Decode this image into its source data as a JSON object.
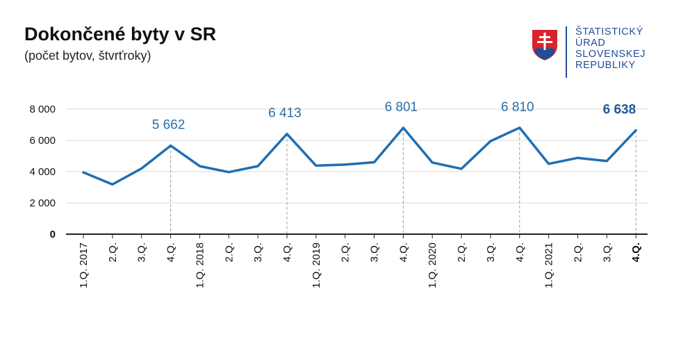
{
  "header": {
    "title": "Dokončené byty v SR",
    "subtitle": "(počet bytov, štvrťroky)"
  },
  "logo": {
    "lines": [
      "ŠTATISTICKÝ",
      "ÚRAD",
      "SLOVENSKEJ",
      "REPUBLIKY"
    ],
    "color": "#1f4e96",
    "icon": "slovak-coat-of-arms-icon"
  },
  "chart_data": {
    "type": "line",
    "categories": [
      "1.Q. 2017",
      "2.Q.",
      "3.Q.",
      "4.Q.",
      "1.Q. 2018",
      "2.Q.",
      "3.Q.",
      "4.Q.",
      "1.Q. 2019",
      "2.Q.",
      "3.Q.",
      "4.Q.",
      "1.Q. 2020",
      "2.Q.",
      "3.Q.",
      "4.Q.",
      "1.Q. 2021",
      "2.Q.",
      "3.Q.",
      "4.Q."
    ],
    "series": [
      {
        "values": [
          3950,
          3180,
          4200,
          5662,
          4350,
          3970,
          4350,
          6413,
          4380,
          4450,
          4600,
          6801,
          4580,
          4180,
          5950,
          6810,
          4500,
          4880,
          4680,
          6638
        ]
      }
    ],
    "data_labels": [
      {
        "index": 3,
        "text": "5 662"
      },
      {
        "index": 7,
        "text": "6 413"
      },
      {
        "index": 11,
        "text": "6 801"
      },
      {
        "index": 15,
        "text": "6 810"
      },
      {
        "index": 19,
        "text": "6 638",
        "bold": true
      }
    ],
    "y_ticks": [
      "0",
      "2 000",
      "4 000",
      "6 000",
      "8 000"
    ],
    "y_tick_values": [
      0,
      2000,
      4000,
      6000,
      8000
    ],
    "ylim": [
      0,
      8000
    ],
    "grid": true,
    "line_color": "#1f6fb4",
    "dashed_guides_at": [
      3,
      7,
      11,
      15,
      19
    ],
    "bold_last_category": true
  }
}
